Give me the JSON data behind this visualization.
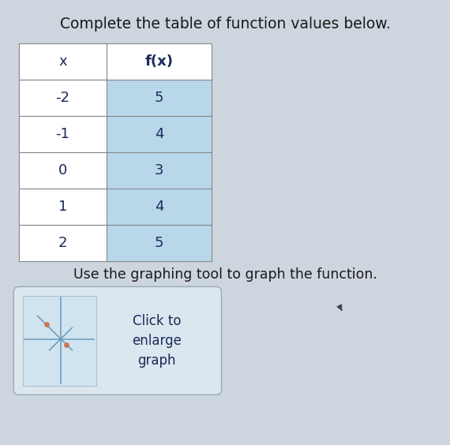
{
  "title": "Complete the table of function values below.",
  "subtitle": "Use the graphing tool to graph the function.",
  "button_text": [
    "Click to",
    "enlarge",
    "graph"
  ],
  "col_headers": [
    "x",
    "f(x)"
  ],
  "rows": [
    [
      "-2",
      "5"
    ],
    [
      "-1",
      "4"
    ],
    [
      "0",
      "3"
    ],
    [
      "1",
      "4"
    ],
    [
      "2",
      "5"
    ]
  ],
  "fx_col_bg": "#b8d8ea",
  "header_bg": "#ffffff",
  "table_border": "#888888",
  "text_color": "#1a2a5a",
  "title_color": "#1a1a1a",
  "subtitle_color": "#1a1a1a",
  "bg_color": "#cdd5de",
  "button_bg": "#dce6ee",
  "button_border": "#99aabb",
  "mini_graph_bg": "#d0e4f0",
  "axis_color": "#6699bb",
  "dot_color": "#cc7755",
  "cursor_color": "#444455",
  "title_fontsize": 13.5,
  "subtitle_fontsize": 12.5,
  "table_fontsize": 13,
  "button_fontsize": 12
}
